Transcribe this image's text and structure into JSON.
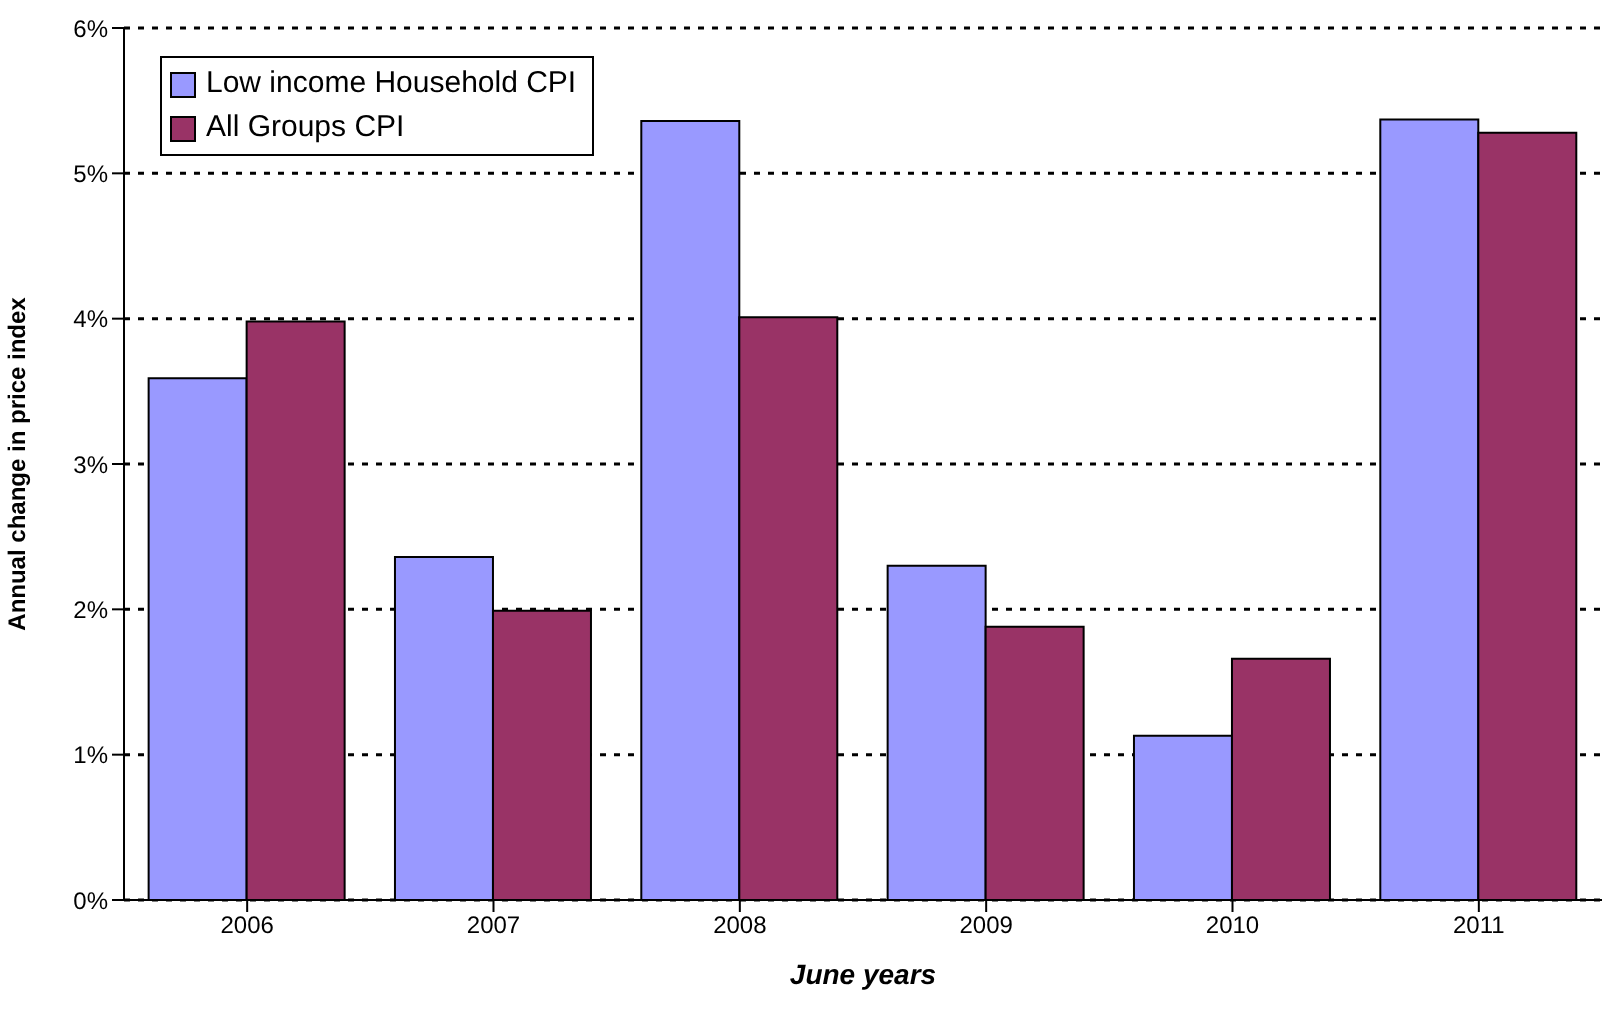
{
  "chart_data": {
    "type": "bar",
    "xlabel": "June years",
    "ylabel": "Annual change in price index",
    "categories": [
      "2006",
      "2007",
      "2008",
      "2009",
      "2010",
      "2011"
    ],
    "series": [
      {
        "name": "Low income Household CPI",
        "color": "#9999ff",
        "values": [
          3.59,
          2.36,
          5.36,
          2.3,
          1.13,
          5.37
        ]
      },
      {
        "name": "All Groups CPI",
        "color": "#993366",
        "values": [
          3.98,
          1.99,
          4.01,
          1.88,
          1.66,
          5.28
        ]
      }
    ],
    "ylim": [
      0,
      6
    ],
    "yticks": [
      {
        "value": 0,
        "label": "0%"
      },
      {
        "value": 1,
        "label": "1%"
      },
      {
        "value": 2,
        "label": "2%"
      },
      {
        "value": 3,
        "label": "3%"
      },
      {
        "value": 4,
        "label": "4%"
      },
      {
        "value": 5,
        "label": "5%"
      },
      {
        "value": 6,
        "label": "6%"
      }
    ],
    "grid": "y",
    "legend": "top left"
  }
}
